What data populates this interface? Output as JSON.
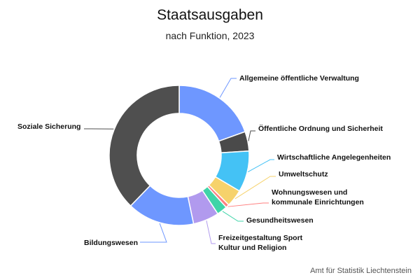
{
  "chart_data": {
    "type": "pie",
    "variant": "donut",
    "title": "Staatsausgaben",
    "subtitle": "nach Funktion, 2023",
    "unit": "share of total (%)",
    "slices": [
      {
        "label": "Allgemeine öffentliche Verwaltung",
        "value": 19.5,
        "color": "#6e97ff",
        "label_lines": [
          "Allgemeine öffentliche Verwaltung"
        ]
      },
      {
        "label": "Öffentliche Ordnung und Sicherheit",
        "value": 4.5,
        "color": "#4a4a4a",
        "label_lines": [
          "Öffentliche Ordnung und Sicherheit"
        ]
      },
      {
        "label": "Wirtschaftliche Angelegenheiten",
        "value": 9.5,
        "color": "#44c2f5",
        "label_lines": [
          "Wirtschaftliche Angelegenheiten"
        ]
      },
      {
        "label": "Umweltschutz",
        "value": 4.0,
        "color": "#f6d26b",
        "label_lines": [
          "Umweltschutz"
        ]
      },
      {
        "label": "Wohnungswesen und kommunale Einrichtungen",
        "value": 0.8,
        "color": "#ff7f7f",
        "label_lines": [
          "Wohnungswesen und",
          "kommunale Einrichtungen"
        ]
      },
      {
        "label": "Gesundheitswesen",
        "value": 2.4,
        "color": "#3fd4a8",
        "label_lines": [
          "Gesundheitswesen"
        ]
      },
      {
        "label": "Freizeitgestaltung Sport Kultur und Religion",
        "value": 6.0,
        "color": "#b19aee",
        "label_lines": [
          "Freizeitgestaltung Sport",
          "Kultur und Religion"
        ]
      },
      {
        "label": "Bildungswesen",
        "value": 15.5,
        "color": "#6e97ff",
        "label_lines": [
          "Bildungswesen"
        ]
      },
      {
        "label": "Soziale Sicherung",
        "value": 37.8,
        "color": "#4f4f4f",
        "label_lines": [
          "Soziale Sicherung"
        ]
      }
    ],
    "slice_border_color": "#ffffff",
    "legend": "none"
  },
  "footer": {
    "source": "Amt für Statistik Liechtenstein"
  }
}
